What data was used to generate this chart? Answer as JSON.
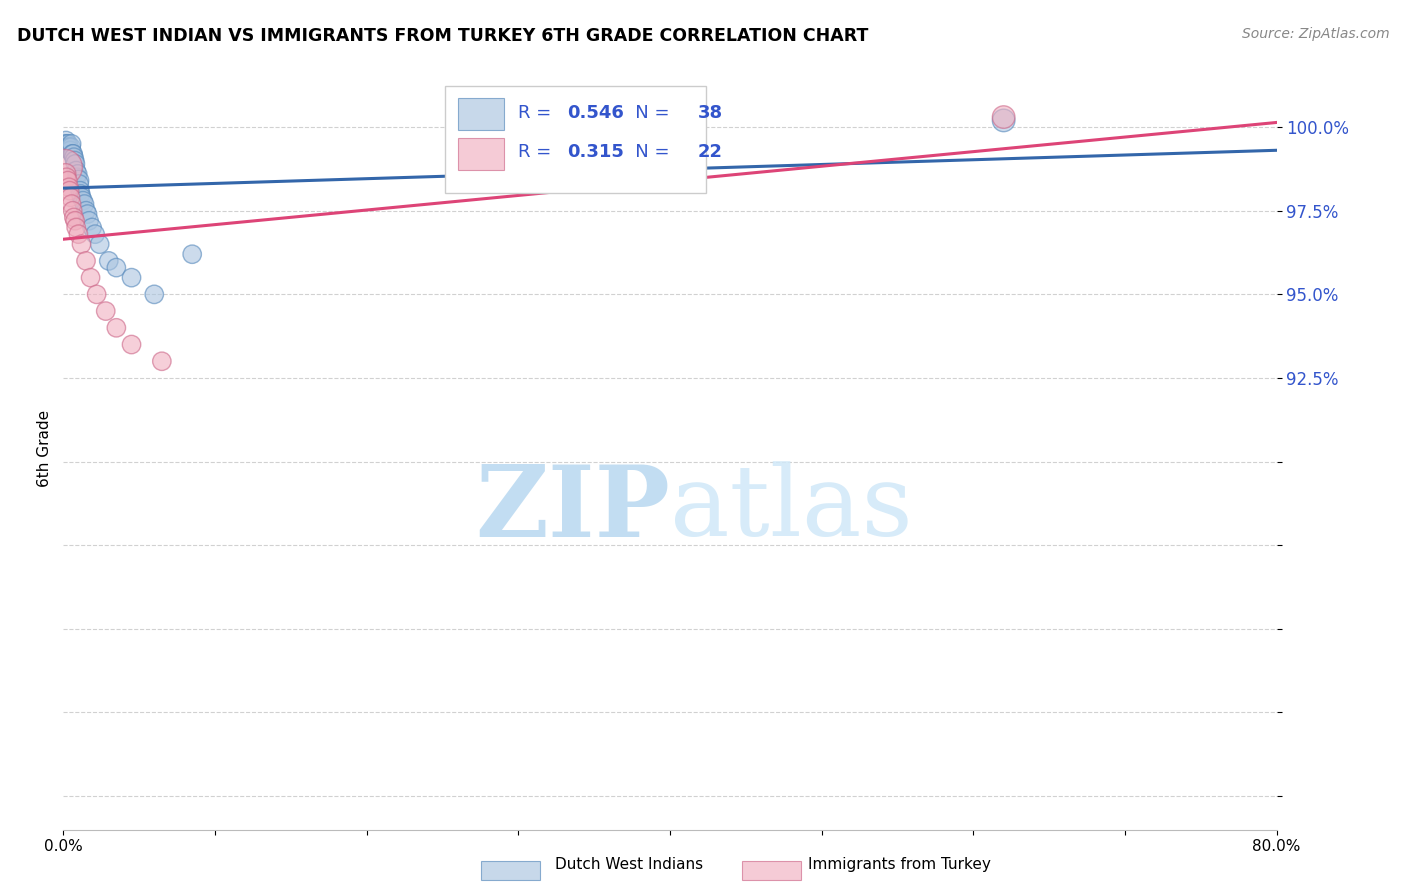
{
  "title": "DUTCH WEST INDIAN VS IMMIGRANTS FROM TURKEY 6TH GRADE CORRELATION CHART",
  "source": "Source: ZipAtlas.com",
  "ylabel": "6th Grade",
  "ytick_vals": [
    80.0,
    82.5,
    85.0,
    87.5,
    90.0,
    92.5,
    95.0,
    97.5,
    100.0
  ],
  "ytick_labels": [
    "",
    "",
    "",
    "",
    "",
    "92.5%",
    "95.0%",
    "97.5%",
    "100.0%"
  ],
  "xlim": [
    0.0,
    80.0
  ],
  "ylim": [
    79.0,
    101.8
  ],
  "blue_R": 0.546,
  "blue_N": 38,
  "pink_R": 0.315,
  "pink_N": 22,
  "blue_color": "#aac4e0",
  "pink_color": "#f0b0c0",
  "blue_edge_color": "#5588bb",
  "pink_edge_color": "#cc6688",
  "blue_line_color": "#3366aa",
  "pink_line_color": "#dd4477",
  "blue_scatter_x": [
    0.08,
    0.12,
    0.18,
    0.22,
    0.28,
    0.32,
    0.38,
    0.42,
    0.48,
    0.52,
    0.55,
    0.6,
    0.65,
    0.7,
    0.75,
    0.8,
    0.85,
    0.9,
    0.95,
    1.0,
    1.05,
    1.1,
    1.15,
    1.2,
    1.3,
    1.4,
    1.5,
    1.6,
    1.7,
    1.9,
    2.1,
    2.4,
    3.0,
    3.5,
    4.5,
    6.0,
    8.5,
    62.0
  ],
  "blue_scatter_y": [
    99.5,
    99.4,
    99.6,
    99.5,
    99.4,
    99.5,
    99.4,
    99.3,
    99.3,
    99.4,
    99.5,
    99.2,
    99.2,
    99.1,
    99.0,
    98.9,
    98.7,
    98.5,
    98.6,
    98.4,
    98.3,
    98.1,
    98.0,
    97.9,
    97.8,
    97.7,
    97.5,
    97.4,
    97.2,
    97.0,
    96.8,
    96.5,
    96.0,
    95.8,
    95.5,
    95.0,
    96.2,
    100.2
  ],
  "blue_scatter_size": [
    80,
    80,
    80,
    80,
    80,
    80,
    80,
    80,
    80,
    80,
    80,
    80,
    80,
    80,
    80,
    80,
    80,
    80,
    80,
    100,
    80,
    80,
    80,
    80,
    80,
    80,
    80,
    80,
    80,
    80,
    80,
    80,
    80,
    80,
    80,
    80,
    80,
    120
  ],
  "pink_scatter_x": [
    0.08,
    0.15,
    0.22,
    0.3,
    0.38,
    0.42,
    0.48,
    0.55,
    0.62,
    0.7,
    0.78,
    0.85,
    1.0,
    1.2,
    1.5,
    1.8,
    2.2,
    2.8,
    3.5,
    4.5,
    6.5,
    62.0
  ],
  "pink_scatter_y": [
    98.8,
    98.6,
    98.5,
    98.4,
    98.2,
    98.1,
    97.9,
    97.7,
    97.5,
    97.3,
    97.2,
    97.0,
    96.8,
    96.5,
    96.0,
    95.5,
    95.0,
    94.5,
    94.0,
    93.5,
    93.0,
    100.3
  ],
  "pink_scatter_size": [
    300,
    100,
    80,
    80,
    80,
    80,
    80,
    80,
    80,
    80,
    80,
    80,
    80,
    80,
    80,
    80,
    80,
    80,
    80,
    80,
    80,
    120
  ],
  "watermark_zip": "ZIP",
  "watermark_atlas": "atlas",
  "watermark_color": "#d8edf8",
  "grid_color": "#cccccc",
  "background_color": "#ffffff"
}
